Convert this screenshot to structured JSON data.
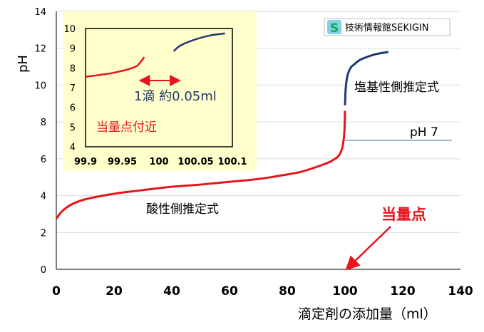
{
  "chart_data": [
    {
      "type": "line",
      "xlabel": "滴定剤の添加量（ml）",
      "ylabel": "pH",
      "xlim": [
        0,
        140
      ],
      "ylim": [
        0,
        14
      ],
      "xticks": [
        "0",
        "20",
        "40",
        "60",
        "80",
        "100",
        "120",
        "140"
      ],
      "yticks": [
        "0",
        "2",
        "4",
        "6",
        "8",
        "10",
        "12",
        "14"
      ],
      "reference_line": {
        "y": 7,
        "label": "pH 7",
        "color": "#2e75b6"
      },
      "series": [
        {
          "name": "酸性側推定式",
          "color": "#e8141b",
          "x": [
            0,
            2,
            5,
            10,
            20,
            30,
            40,
            50,
            60,
            70,
            80,
            85,
            90,
            93,
            95,
            97,
            98,
            99,
            99.5,
            99.8,
            99.9,
            100
          ],
          "y": [
            2.75,
            3.15,
            3.5,
            3.8,
            4.1,
            4.3,
            4.48,
            4.6,
            4.75,
            4.9,
            5.15,
            5.3,
            5.55,
            5.72,
            5.85,
            6.05,
            6.2,
            6.55,
            7.0,
            7.5,
            7.9,
            8.6
          ]
        },
        {
          "name": "塩基性側推定式",
          "color": "#1f3a6e",
          "x": [
            100,
            100.2,
            100.5,
            101,
            102,
            103,
            105,
            108,
            110,
            112,
            115
          ],
          "y": [
            8.9,
            9.7,
            10.2,
            10.6,
            10.95,
            11.1,
            11.35,
            11.55,
            11.65,
            11.72,
            11.8
          ]
        }
      ],
      "annotations": {
        "acid_label": "酸性側推定式",
        "base_label": "塩基性側推定式",
        "equivalence_label": "当量点",
        "arrow_target_x": 100
      },
      "legend_visible": false,
      "grid": "horizontal"
    },
    {
      "type": "line",
      "role": "inset",
      "background": "#ffffcc",
      "xlim": [
        99.9,
        100.1
      ],
      "ylim": [
        4,
        10
      ],
      "xticks": [
        "99.9",
        "99.95",
        "100",
        "100.05",
        "100.1"
      ],
      "yticks": [
        "4",
        "5",
        "6",
        "7",
        "8",
        "9",
        "10"
      ],
      "series": [
        {
          "name": "酸性側",
          "color": "#e8141b",
          "x": [
            99.9,
            99.93,
            99.95,
            99.96,
            99.97,
            99.975,
            99.98
          ],
          "y": [
            7.55,
            7.7,
            7.85,
            7.95,
            8.1,
            8.3,
            8.55
          ]
        },
        {
          "name": "塩基性側",
          "color": "#1f3a6e",
          "x": [
            100.02,
            100.03,
            100.05,
            100.07,
            100.09
          ],
          "y": [
            8.85,
            9.15,
            9.45,
            9.65,
            9.75
          ]
        }
      ],
      "annotations": {
        "drop_label": "1滴 約0.05ml",
        "region_label": "当量点付近",
        "arrow_from": 99.98,
        "arrow_to": 100.03
      }
    }
  ],
  "watermark": {
    "badge": "S",
    "text": "技術情報館SEKIGIN"
  },
  "colors": {
    "acid": "#e8141b",
    "base": "#1f3a6e",
    "ph7": "#2e75b6",
    "inset_bg": "#ffffcc",
    "text_blue": "#1f3864"
  }
}
